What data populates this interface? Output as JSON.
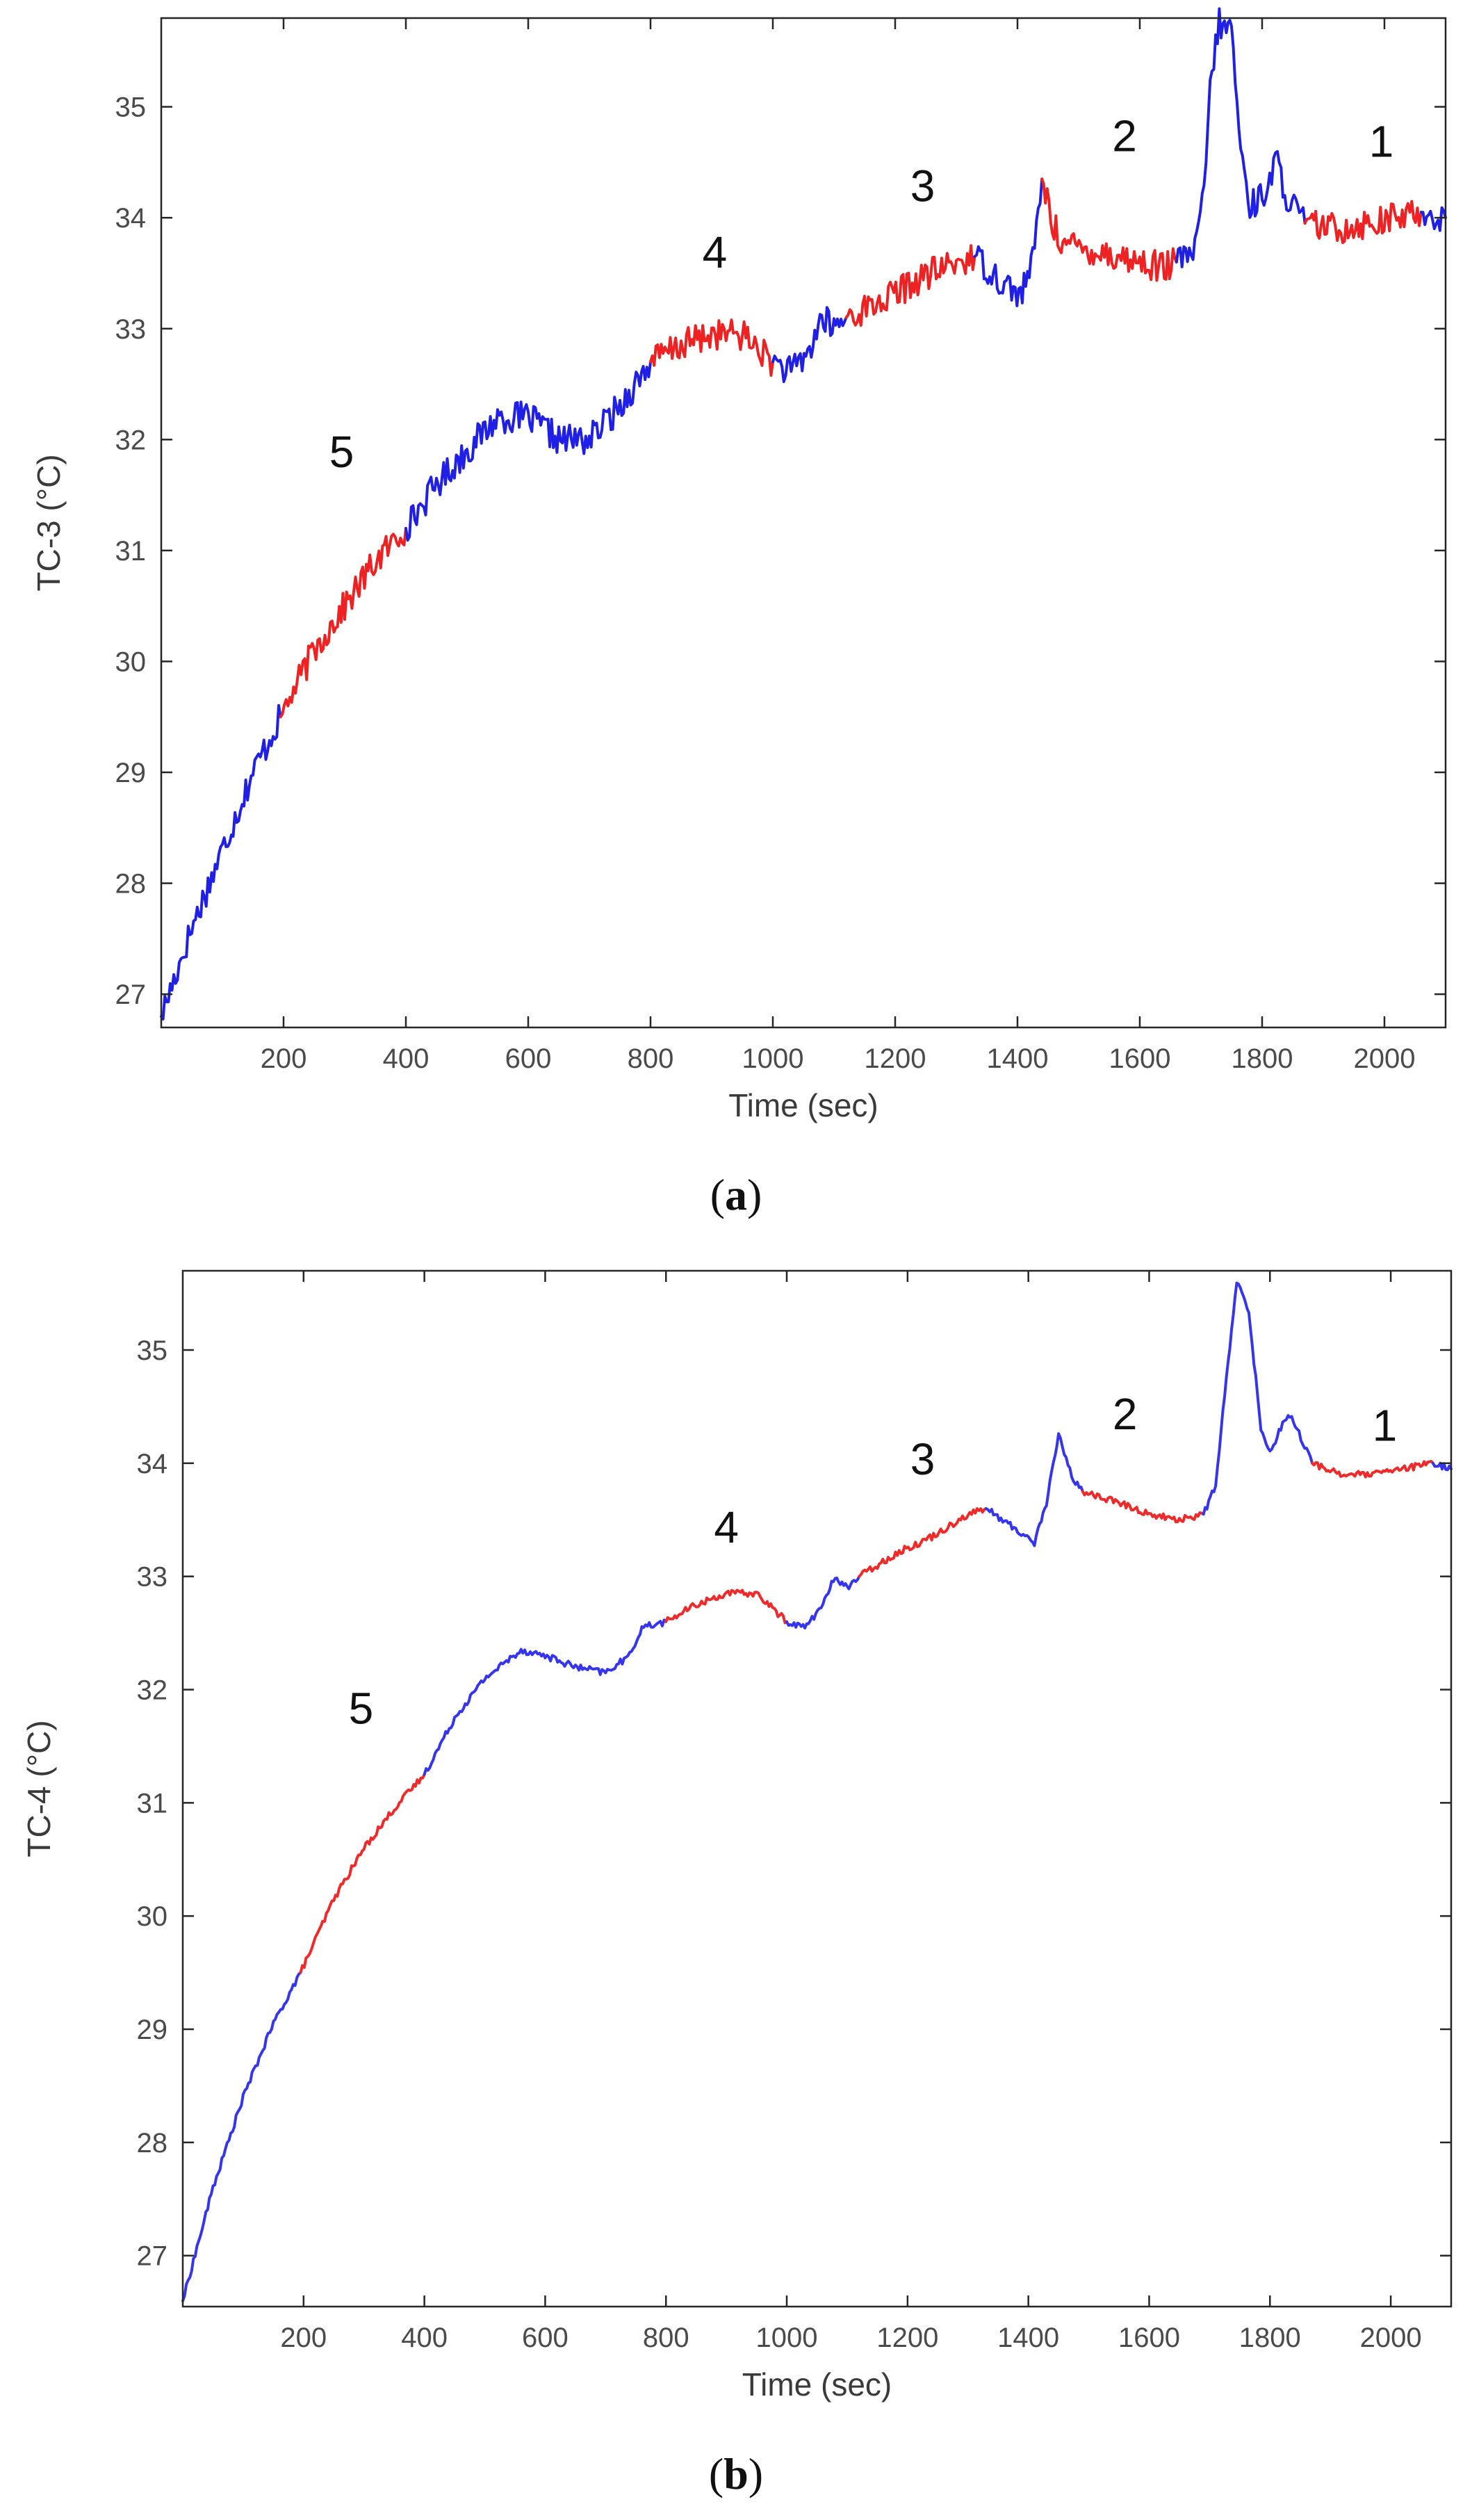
{
  "chart_data": [
    {
      "id": "a",
      "type": "line",
      "caption_open": "(",
      "caption_letter": "a",
      "caption_close": ")",
      "xlabel": "Time (sec)",
      "ylabel": "TC-3 (°C)",
      "xlim": [
        0,
        2100
      ],
      "ylim": [
        26.7,
        35.8
      ],
      "xticks": [
        200,
        400,
        600,
        800,
        1000,
        1200,
        1400,
        1600,
        1800,
        2000
      ],
      "yticks": [
        27,
        28,
        29,
        30,
        31,
        32,
        33,
        34,
        35
      ],
      "noise": 0.28,
      "colors": {
        "blue": "#1f1fe6",
        "red": "#ee2222"
      },
      "segment_labels": [
        {
          "text": "5",
          "x": 295,
          "y": 31.75
        },
        {
          "text": "4",
          "x": 905,
          "y": 33.55
        },
        {
          "text": "3",
          "x": 1245,
          "y": 34.15
        },
        {
          "text": "2",
          "x": 1575,
          "y": 34.6
        },
        {
          "text": "1",
          "x": 1995,
          "y": 34.55
        }
      ],
      "series": [
        {
          "color": "blue",
          "x": [
            0,
            50,
            100,
            150,
            195
          ],
          "y": [
            26.8,
            27.6,
            28.3,
            29.0,
            29.5
          ]
        },
        {
          "color": "red",
          "x": [
            195,
            250,
            300,
            350,
            400
          ],
          "y": [
            29.5,
            30.1,
            30.5,
            30.9,
            31.2
          ]
        },
        {
          "color": "blue",
          "x": [
            400,
            450,
            500,
            550,
            600,
            650,
            700,
            750,
            800
          ],
          "y": [
            31.2,
            31.6,
            31.9,
            32.2,
            32.2,
            32.0,
            32.0,
            32.3,
            32.7
          ]
        },
        {
          "color": "red",
          "x": [
            800,
            850,
            900,
            950,
            1000
          ],
          "y": [
            32.7,
            32.85,
            32.95,
            32.95,
            32.7
          ]
        },
        {
          "color": "blue",
          "x": [
            1000,
            1030,
            1060,
            1080,
            1100,
            1120
          ],
          "y": [
            32.7,
            32.6,
            32.8,
            33.1,
            33.0,
            33.1
          ]
        },
        {
          "color": "red",
          "x": [
            1120,
            1180,
            1240,
            1300,
            1330
          ],
          "y": [
            33.1,
            33.25,
            33.45,
            33.6,
            33.65
          ]
        },
        {
          "color": "blue",
          "x": [
            1330,
            1370,
            1405,
            1425,
            1440
          ],
          "y": [
            33.65,
            33.45,
            33.3,
            33.6,
            34.35
          ]
        },
        {
          "color": "red",
          "x": [
            1440,
            1460,
            1480,
            1530,
            1600,
            1640,
            1660
          ],
          "y": [
            34.35,
            33.9,
            33.75,
            33.7,
            33.6,
            33.55,
            33.6
          ]
        },
        {
          "color": "blue",
          "x": [
            1660,
            1690,
            1705,
            1715,
            1730,
            1750,
            1765,
            1780,
            1800,
            1825,
            1840,
            1870
          ],
          "y": [
            33.6,
            33.7,
            34.2,
            35.2,
            35.75,
            35.7,
            34.6,
            34.1,
            34.2,
            34.5,
            34.2,
            33.95
          ]
        },
        {
          "color": "red",
          "x": [
            1870,
            1920,
            1970,
            2020,
            2060
          ],
          "y": [
            33.95,
            33.9,
            33.95,
            34.0,
            34.05
          ]
        },
        {
          "color": "blue",
          "x": [
            2060,
            2100
          ],
          "y": [
            34.05,
            34.0
          ]
        }
      ]
    },
    {
      "id": "b",
      "type": "line",
      "caption_open": "(",
      "caption_letter": "b",
      "caption_close": ")",
      "xlabel": "Time (sec)",
      "ylabel": "TC-4 (°C)",
      "xlim": [
        0,
        2100
      ],
      "ylim": [
        26.55,
        35.7
      ],
      "xticks": [
        200,
        400,
        600,
        800,
        1000,
        1200,
        1400,
        1600,
        1800,
        2000
      ],
      "yticks": [
        27,
        28,
        29,
        30,
        31,
        32,
        33,
        34,
        35
      ],
      "noise": 0.06,
      "colors": {
        "blue": "#3535ee",
        "red": "#ee2a2a"
      },
      "segment_labels": [
        {
          "text": "5",
          "x": 295,
          "y": 31.7
        },
        {
          "text": "4",
          "x": 900,
          "y": 33.3
        },
        {
          "text": "3",
          "x": 1225,
          "y": 33.9
        },
        {
          "text": "2",
          "x": 1560,
          "y": 34.3
        },
        {
          "text": "1",
          "x": 1990,
          "y": 34.2
        }
      ],
      "series": [
        {
          "color": "blue",
          "x": [
            0,
            50,
            100,
            150,
            195
          ],
          "y": [
            26.6,
            27.6,
            28.4,
            29.05,
            29.5
          ]
        },
        {
          "color": "red",
          "x": [
            195,
            250,
            300,
            350,
            400
          ],
          "y": [
            29.5,
            30.15,
            30.6,
            30.95,
            31.25
          ]
        },
        {
          "color": "blue",
          "x": [
            400,
            450,
            500,
            560,
            600,
            650,
            700,
            740,
            760,
            800
          ],
          "y": [
            31.25,
            31.75,
            32.1,
            32.35,
            32.3,
            32.2,
            32.15,
            32.3,
            32.55,
            32.6
          ]
        },
        {
          "color": "red",
          "x": [
            800,
            850,
            900,
            950,
            1000
          ],
          "y": [
            32.6,
            32.75,
            32.85,
            32.85,
            32.6
          ]
        },
        {
          "color": "blue",
          "x": [
            1000,
            1030,
            1060,
            1080,
            1100,
            1120
          ],
          "y": [
            32.6,
            32.55,
            32.75,
            33.0,
            32.9,
            33.0
          ]
        },
        {
          "color": "red",
          "x": [
            1120,
            1180,
            1240,
            1300,
            1330
          ],
          "y": [
            33.0,
            33.2,
            33.35,
            33.55,
            33.6
          ]
        },
        {
          "color": "blue",
          "x": [
            1330,
            1370,
            1410,
            1430,
            1450,
            1475,
            1490
          ],
          "y": [
            33.6,
            33.45,
            33.3,
            33.65,
            34.25,
            33.85,
            33.75
          ]
        },
        {
          "color": "red",
          "x": [
            1490,
            1550,
            1600,
            1650,
            1690
          ],
          "y": [
            33.75,
            33.65,
            33.55,
            33.5,
            33.55
          ]
        },
        {
          "color": "blue",
          "x": [
            1690,
            1710,
            1725,
            1745,
            1765,
            1785,
            1800,
            1830,
            1845,
            1870
          ],
          "y": [
            33.55,
            33.8,
            34.6,
            35.6,
            35.35,
            34.3,
            34.1,
            34.45,
            34.3,
            34.0
          ]
        },
        {
          "color": "red",
          "x": [
            1870,
            1920,
            1970,
            2020,
            2070
          ],
          "y": [
            34.0,
            33.9,
            33.9,
            33.95,
            34.0
          ]
        },
        {
          "color": "blue",
          "x": [
            2070,
            2100
          ],
          "y": [
            34.0,
            33.95
          ]
        }
      ]
    }
  ]
}
